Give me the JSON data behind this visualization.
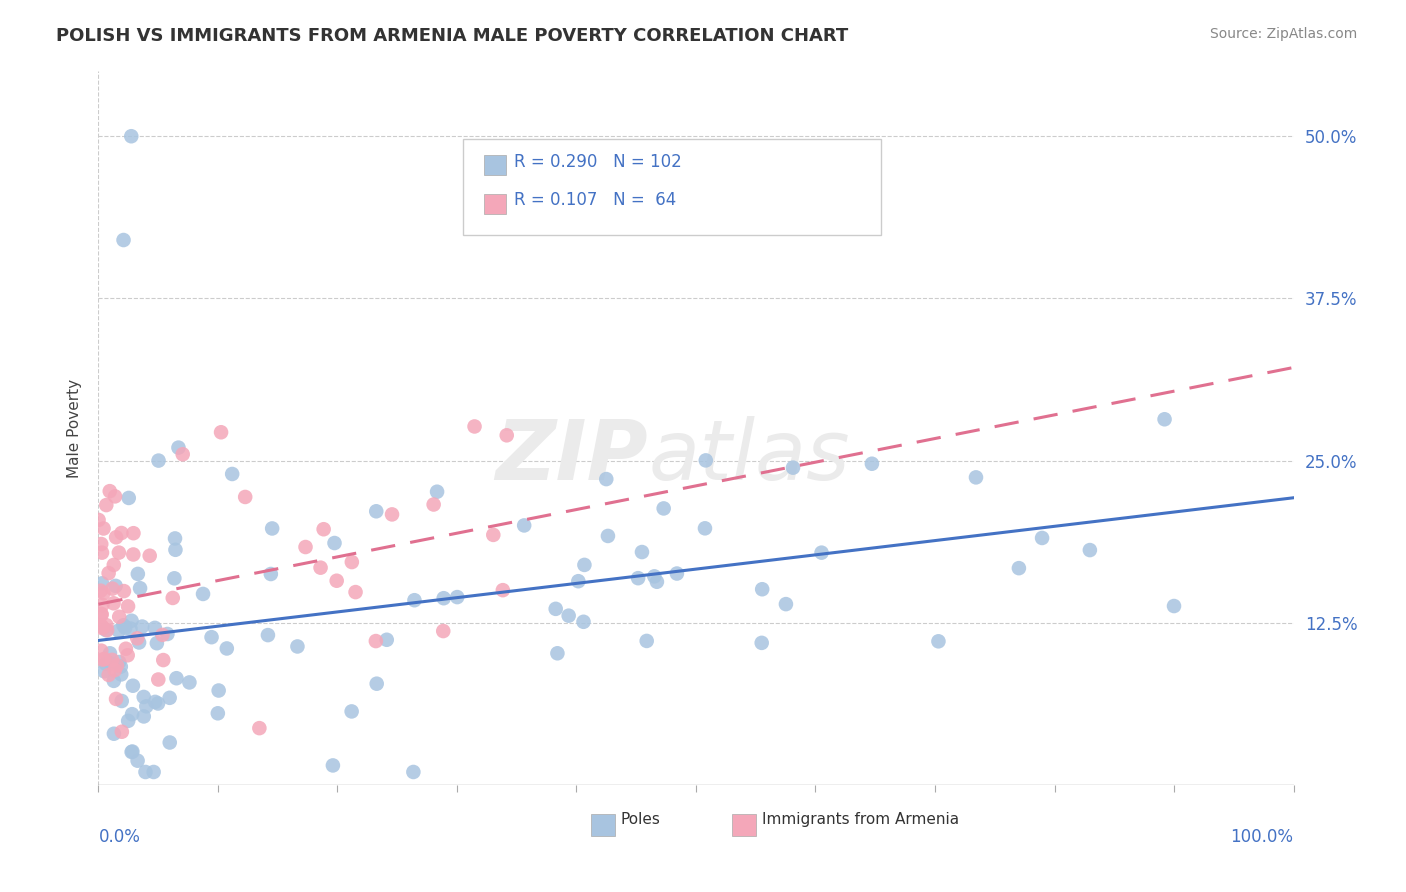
{
  "title": "POLISH VS IMMIGRANTS FROM ARMENIA MALE POVERTY CORRELATION CHART",
  "source": "Source: ZipAtlas.com",
  "ylabel": "Male Poverty",
  "poles_color": "#a8c4e0",
  "armenia_color": "#f4a7b9",
  "poles_line_color": "#4472c4",
  "armenia_line_color": "#e07090",
  "poles_R": 0.29,
  "poles_N": 102,
  "armenia_R": 0.107,
  "armenia_N": 64,
  "background_color": "#ffffff",
  "xlim": [
    0.0,
    1.0
  ],
  "ylim": [
    0.0,
    0.55
  ],
  "ytick_vals": [
    0.0,
    0.125,
    0.25,
    0.375,
    0.5
  ],
  "ytick_labels": [
    "",
    "12.5%",
    "25.0%",
    "37.5%",
    "50.0%"
  ]
}
